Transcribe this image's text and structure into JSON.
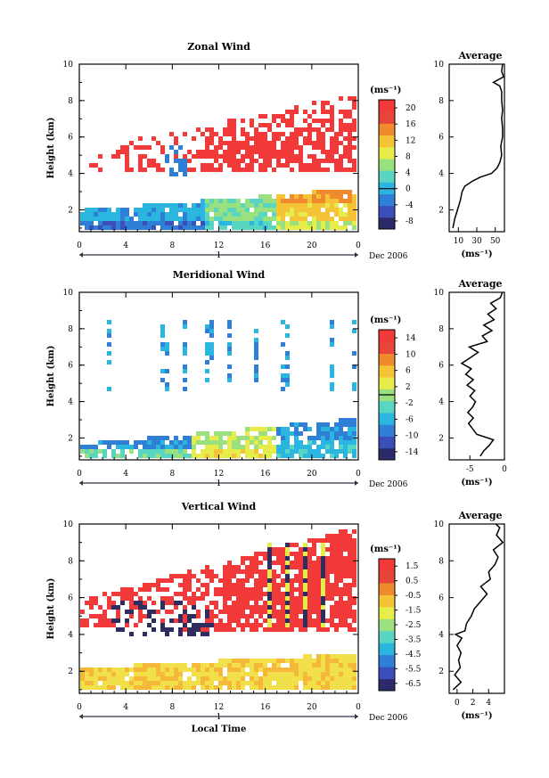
{
  "figure": {
    "date_label": "Dec 2006",
    "day_label": "1",
    "xlabel": "Local Time"
  },
  "colors": {
    "palette": [
      "#2b2b6b",
      "#3b4fb8",
      "#2f7fd6",
      "#2bb6e0",
      "#58d6c2",
      "#9be07e",
      "#e6ec4a",
      "#f5c436",
      "#f08a2c",
      "#e8453a",
      "#f23a3a"
    ],
    "red": "#f23a3a",
    "yellow": "#f2e04a",
    "orange": "#f5b83a",
    "navy": "#2d2d60"
  },
  "chart_data": [
    {
      "type": "heatmap",
      "title": "Zonal Wind",
      "xlabel": "",
      "ylabel": "Height (km)",
      "xticks": [
        "0",
        "4",
        "8",
        "12",
        "16",
        "20",
        "0"
      ],
      "yticks": [
        "2",
        "4",
        "6",
        "8",
        "10"
      ],
      "xlim": [
        0,
        24
      ],
      "ylim": [
        0.8,
        10
      ],
      "colorbar": {
        "unit": "(ms⁻¹)",
        "ticks": [
          "-8",
          "-4",
          "0",
          "4",
          "8",
          "12",
          "16",
          "20"
        ],
        "range": [
          -10,
          22
        ]
      },
      "average_profile": {
        "title": "Average",
        "xlabel": "(ms⁻¹)",
        "xticks": [
          "10",
          "30",
          "50"
        ],
        "xlim": [
          0,
          60
        ],
        "yticks": [
          "2",
          "4",
          "6",
          "8",
          "10"
        ],
        "heights": [
          1.0,
          1.5,
          2.0,
          2.5,
          3.0,
          3.3,
          3.6,
          3.8,
          4.0,
          4.3,
          4.6,
          5.0,
          5.5,
          6.0,
          6.5,
          7.0,
          7.5,
          8.0,
          8.5,
          8.8,
          9.0,
          9.3,
          9.6,
          10.0
        ],
        "values": [
          4,
          6,
          9,
          12,
          14,
          17,
          26,
          34,
          46,
          52,
          55,
          57,
          56,
          58,
          58,
          57,
          58,
          57,
          57,
          55,
          48,
          59,
          57,
          58
        ]
      }
    },
    {
      "type": "heatmap",
      "title": "Meridional Wind",
      "xlabel": "",
      "ylabel": "Height (km)",
      "xticks": [
        "0",
        "4",
        "8",
        "12",
        "16",
        "20",
        "0"
      ],
      "yticks": [
        "2",
        "4",
        "6",
        "8",
        "10"
      ],
      "xlim": [
        0,
        24
      ],
      "ylim": [
        0.8,
        10
      ],
      "colorbar": {
        "unit": "(ms⁻¹)",
        "ticks": [
          "-14",
          "-10",
          "-6",
          "-2",
          "2",
          "6",
          "10",
          "14"
        ],
        "range": [
          -16,
          16
        ]
      },
      "average_profile": {
        "title": "Average",
        "xlabel": "(ms⁻¹)",
        "xticks": [
          "-5",
          "0"
        ],
        "xlim": [
          -8,
          0
        ],
        "yticks": [
          "2",
          "4",
          "6",
          "8",
          "10"
        ],
        "heights": [
          1.0,
          1.3,
          1.6,
          1.9,
          2.2,
          2.5,
          2.8,
          3.1,
          3.4,
          3.7,
          4.0,
          4.3,
          4.6,
          4.9,
          5.2,
          5.5,
          5.8,
          6.1,
          6.4,
          6.7,
          7.0,
          7.3,
          7.6,
          7.9,
          8.2,
          8.5,
          8.8,
          9.1,
          9.4,
          9.7,
          10.0
        ],
        "values": [
          -3.5,
          -3.0,
          -2.2,
          -1.6,
          -4.0,
          -4.6,
          -5.2,
          -4.5,
          -5.3,
          -4.6,
          -4.2,
          -5.0,
          -4.3,
          -5.4,
          -4.5,
          -5.6,
          -4.8,
          -6.2,
          -5.0,
          -3.8,
          -5.1,
          -2.5,
          -3.2,
          -1.8,
          -3.0,
          -1.5,
          -2.4,
          -1.2,
          -2.0,
          -0.6,
          -0.3
        ]
      }
    },
    {
      "type": "heatmap",
      "title": "Vertical Wind",
      "xlabel": "Local Time",
      "ylabel": "Height (km)",
      "xticks": [
        "0",
        "4",
        "8",
        "12",
        "16",
        "20",
        "0"
      ],
      "yticks": [
        "2",
        "4",
        "6",
        "8",
        "10"
      ],
      "xlim": [
        0,
        24
      ],
      "ylim": [
        0.8,
        10
      ],
      "colorbar": {
        "unit": "(ms⁻¹)",
        "ticks": [
          "-6.5",
          "-5.5",
          "-4.5",
          "-3.5",
          "-2.5",
          "-1.5",
          "-0.5",
          "0.5",
          "1.5"
        ],
        "range": [
          -7,
          2
        ]
      },
      "average_profile": {
        "title": "Average",
        "xlabel": "(ms⁻¹)",
        "xticks": [
          "0",
          "2",
          "4"
        ],
        "xlim": [
          -1,
          6
        ],
        "yticks": [
          "2",
          "4",
          "6",
          "8",
          "10"
        ],
        "heights": [
          1.0,
          1.4,
          1.8,
          2.2,
          2.6,
          3.0,
          3.4,
          3.8,
          4.0,
          4.2,
          4.6,
          5.0,
          5.4,
          5.8,
          6.2,
          6.6,
          7.0,
          7.4,
          7.8,
          8.2,
          8.6,
          9.0,
          9.4,
          9.8,
          10.0
        ],
        "values": [
          -0.5,
          0.5,
          -0.3,
          0.4,
          0.2,
          0.5,
          0.0,
          0.6,
          -0.2,
          1.0,
          1.2,
          1.8,
          2.2,
          3.0,
          3.8,
          3.0,
          4.2,
          4.0,
          4.8,
          5.2,
          4.6,
          5.8,
          5.0,
          5.4,
          4.9
        ]
      }
    }
  ]
}
